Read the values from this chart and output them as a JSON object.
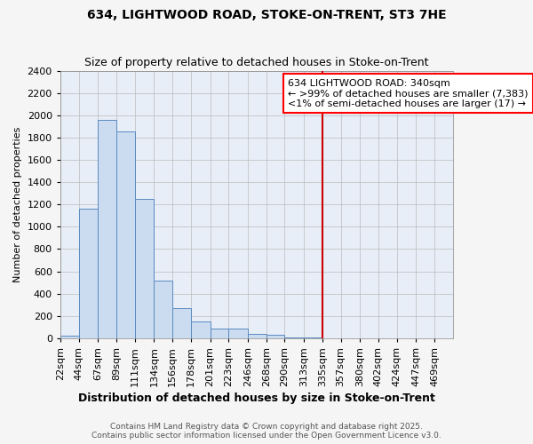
{
  "title": "634, LIGHTWOOD ROAD, STOKE-ON-TRENT, ST3 7HE",
  "subtitle": "Size of property relative to detached houses in Stoke-on-Trent",
  "xlabel": "Distribution of detached houses by size in Stoke-on-Trent",
  "ylabel": "Number of detached properties",
  "footer_line1": "Contains HM Land Registry data © Crown copyright and database right 2025.",
  "footer_line2": "Contains public sector information licensed under the Open Government Licence v3.0.",
  "categories": [
    "22sqm",
    "44sqm",
    "67sqm",
    "89sqm",
    "111sqm",
    "134sqm",
    "156sqm",
    "178sqm",
    "201sqm",
    "223sqm",
    "246sqm",
    "268sqm",
    "290sqm",
    "313sqm",
    "335sqm",
    "357sqm",
    "380sqm",
    "402sqm",
    "424sqm",
    "447sqm",
    "469sqm"
  ],
  "bar_edges": [
    22,
    44,
    67,
    89,
    111,
    134,
    156,
    178,
    201,
    223,
    246,
    268,
    290,
    313,
    335,
    357,
    380,
    402,
    424,
    447,
    469
  ],
  "bar_heights": [
    25,
    1160,
    1960,
    1855,
    1250,
    520,
    270,
    150,
    90,
    85,
    40,
    35,
    10,
    5,
    0,
    0,
    0,
    0,
    0,
    0,
    0
  ],
  "bar_color": "#ccdcf0",
  "bar_edge_color": "#5a8ac0",
  "highlight_bg": "#e8eef8",
  "plot_bg": "#e8eef8",
  "vline_x": 335,
  "vline_color": "#cc0000",
  "annotation_title": "634 LIGHTWOOD ROAD: 340sqm",
  "annotation_line1": "← >99% of detached houses are smaller (7,383)",
  "annotation_line2": "<1% of semi-detached houses are larger (17) →",
  "ylim": [
    0,
    2400
  ],
  "yticks": [
    0,
    200,
    400,
    600,
    800,
    1000,
    1200,
    1400,
    1600,
    1800,
    2000,
    2200,
    2400
  ],
  "fig_bg": "#f5f5f5",
  "title_fontsize": 10,
  "subtitle_fontsize": 9,
  "xlabel_fontsize": 9,
  "ylabel_fontsize": 8,
  "tick_fontsize": 8,
  "annot_fontsize": 8,
  "footer_fontsize": 6.5
}
